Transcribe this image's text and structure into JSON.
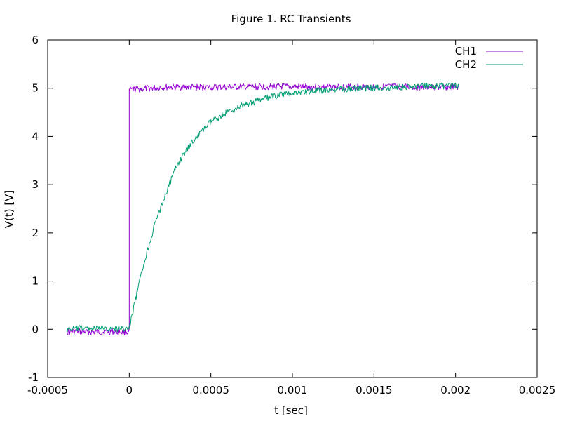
{
  "chart_data": {
    "type": "line",
    "title": "Figure 1. RC Transients",
    "xlabel": "t [sec]",
    "ylabel": "V(t) [V]",
    "xlim": [
      -0.0005,
      0.0025
    ],
    "ylim": [
      -1,
      6
    ],
    "xticks": [
      "-0.0005",
      "0",
      "0.0005",
      "0.001",
      "0.0015",
      "0.002",
      "0.0025"
    ],
    "yticks": [
      "-1",
      "0",
      "1",
      "2",
      "3",
      "4",
      "5",
      "6"
    ],
    "grid": false,
    "legend_position": "top-right",
    "series": [
      {
        "name": "CH1",
        "color": "#9400d3",
        "x": [
          -0.00038,
          -0.0003,
          -0.0002,
          -0.0001,
          -1e-05,
          0.0,
          0.0,
          2e-05,
          0.0002,
          0.0004,
          0.0006,
          0.0008,
          0.001,
          0.0012,
          0.0014,
          0.0016,
          0.0018,
          0.002,
          0.00202
        ],
        "y": [
          -0.05,
          -0.05,
          -0.06,
          -0.05,
          -0.06,
          -0.05,
          4.95,
          4.97,
          5.02,
          5.02,
          5.02,
          5.03,
          5.03,
          5.02,
          5.03,
          5.03,
          5.02,
          5.02,
          5.02
        ]
      },
      {
        "name": "CH2",
        "color": "#009e73",
        "x": [
          -0.00038,
          -0.0003,
          -0.0002,
          -0.0001,
          -1e-05,
          0.0,
          5e-05,
          0.0001,
          0.00015,
          0.0002,
          0.00025,
          0.0003,
          0.0004,
          0.0005,
          0.0006,
          0.0007,
          0.0008,
          0.0009,
          0.001,
          0.0011,
          0.0012,
          0.0014,
          0.0016,
          0.0018,
          0.002,
          0.00202
        ],
        "y": [
          0.0,
          0.02,
          0.02,
          0.01,
          0.02,
          0.02,
          0.8,
          1.5,
          2.1,
          2.6,
          3.05,
          3.45,
          3.95,
          4.3,
          4.5,
          4.65,
          4.75,
          4.85,
          4.9,
          4.93,
          4.96,
          5.0,
          5.02,
          5.04,
          5.05,
          5.05
        ]
      }
    ]
  }
}
